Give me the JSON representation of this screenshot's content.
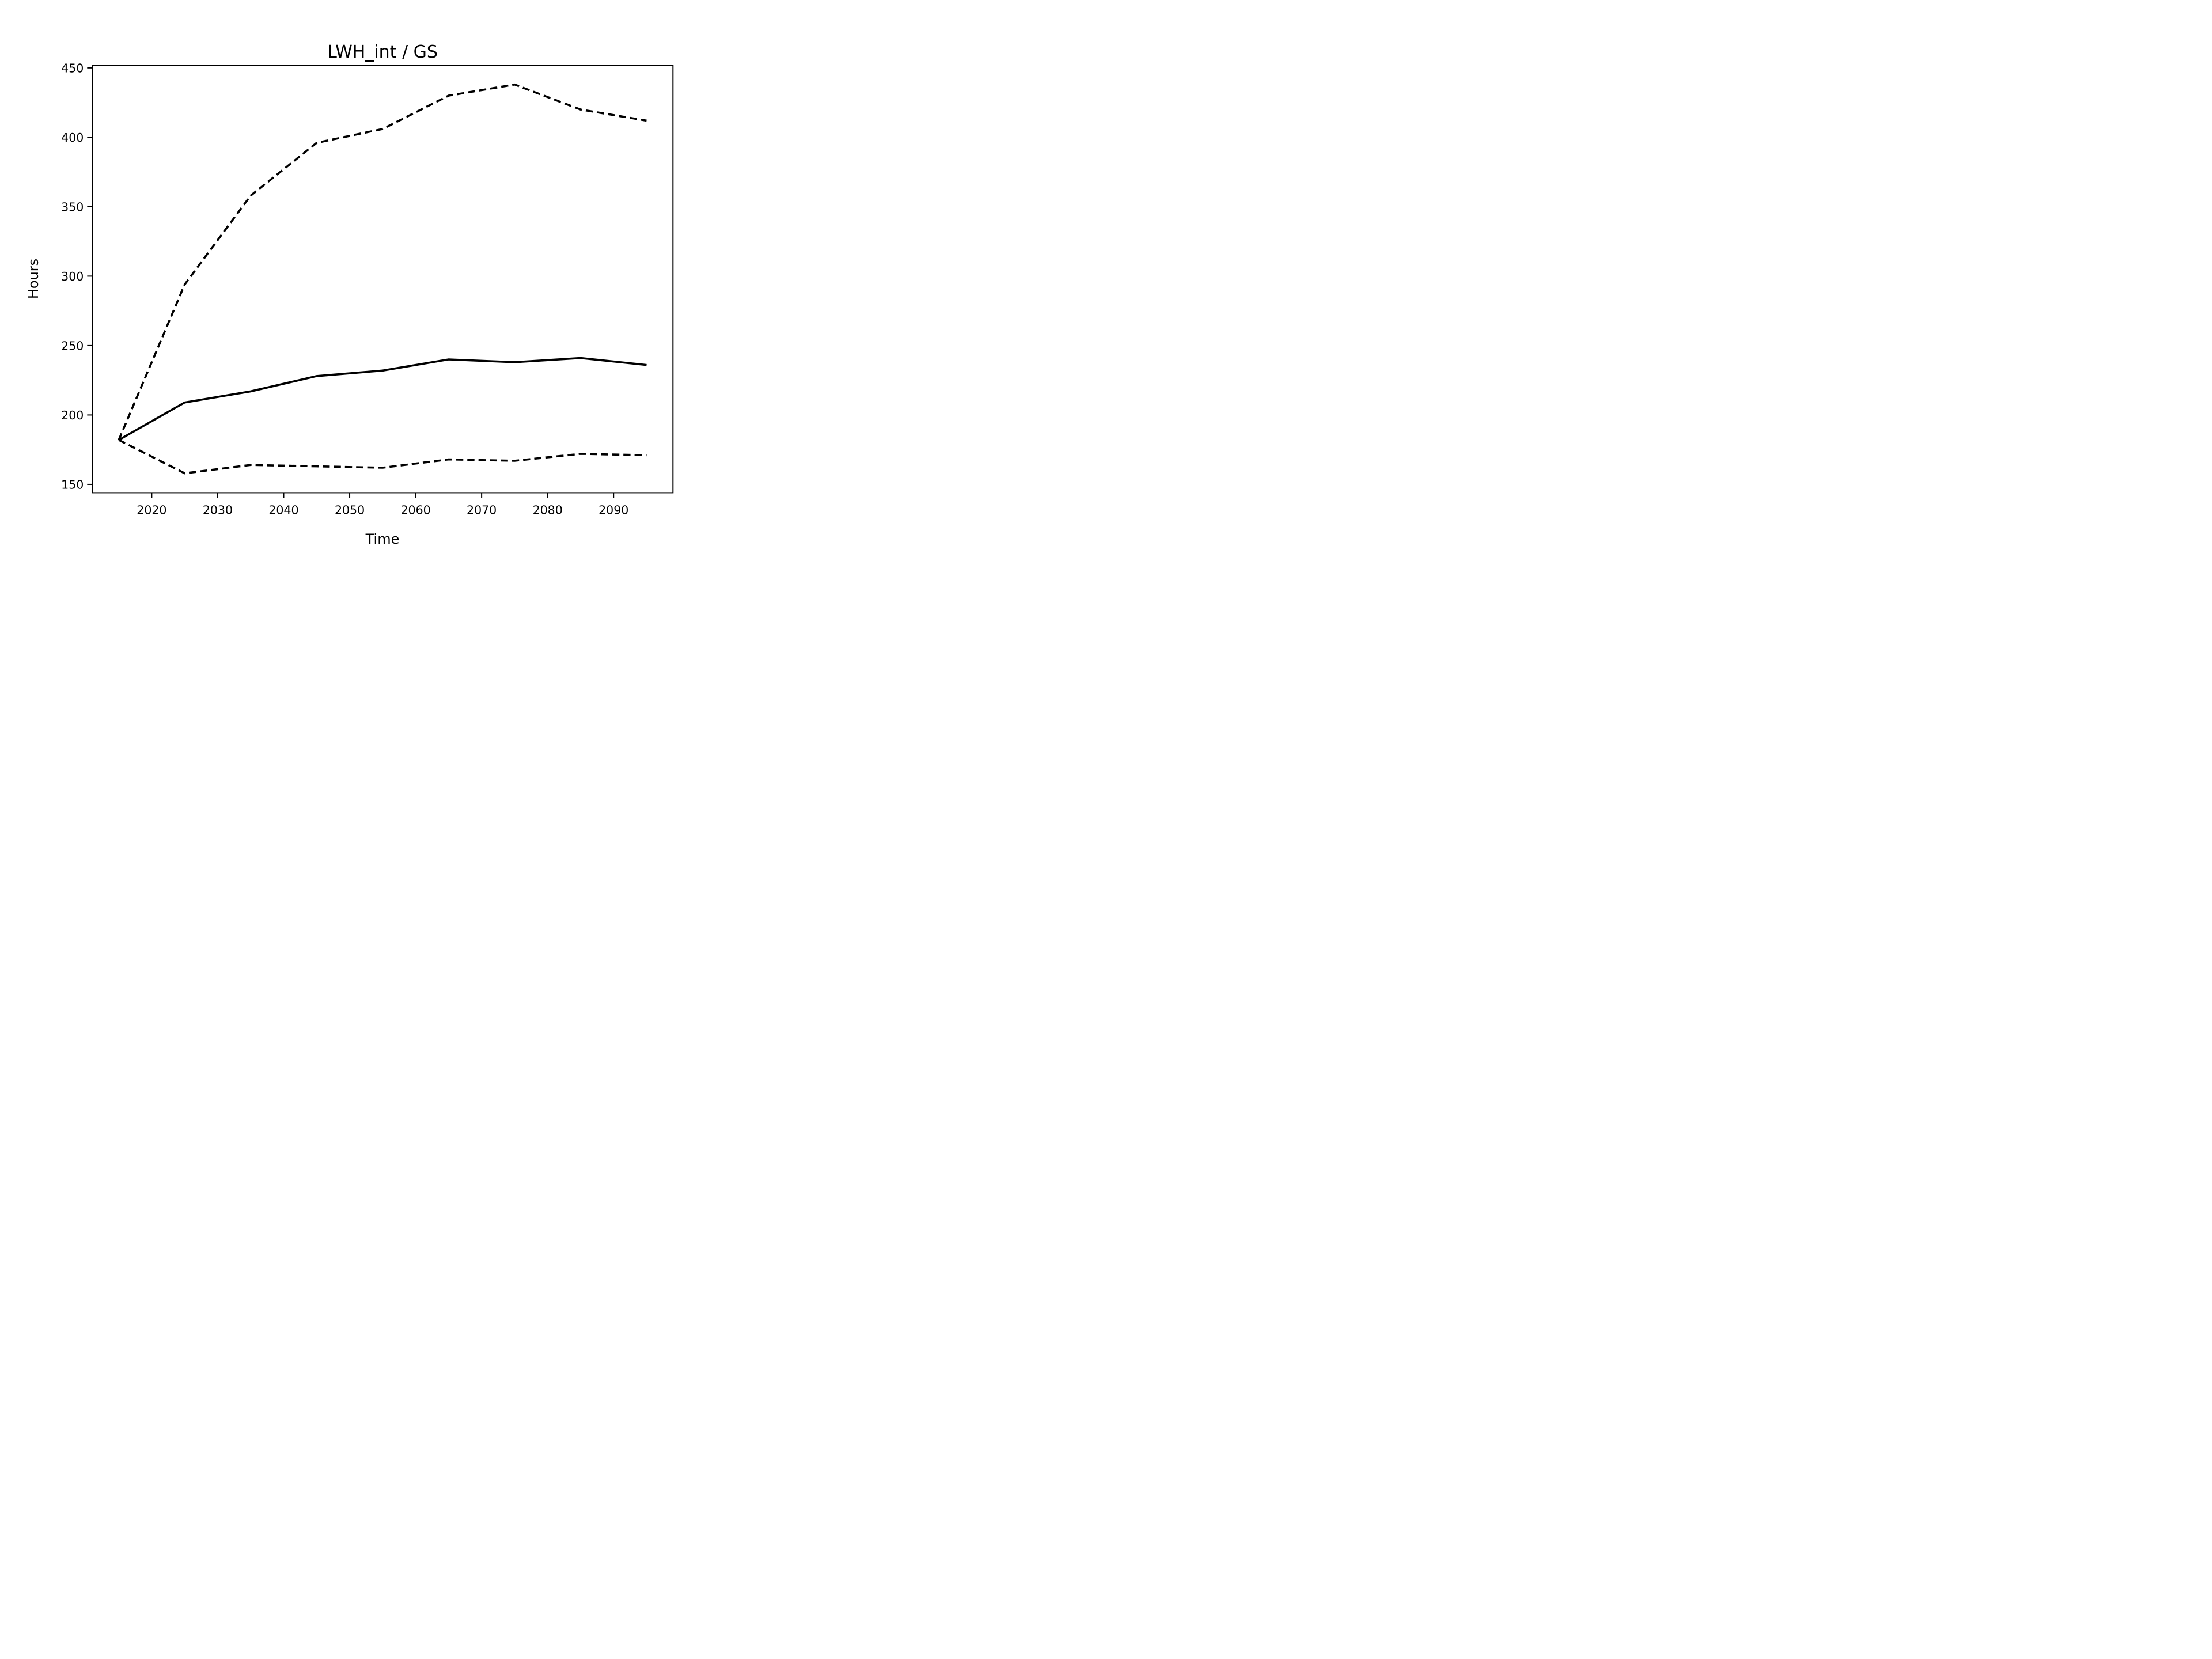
{
  "figure": {
    "background": "#ffffff",
    "foreground": "#000000"
  },
  "chart_data": {
    "type": "line",
    "title": "LWH_int / GS",
    "xlabel": "Time",
    "ylabel": "Hours",
    "x": [
      2015,
      2025,
      2035,
      2045,
      2055,
      2065,
      2075,
      2085,
      2095
    ],
    "series": [
      {
        "name": "upper-dashed",
        "style": "dashed",
        "color": "#000000",
        "values": [
          182,
          294,
          358,
          396,
          406,
          430,
          438,
          420,
          412
        ]
      },
      {
        "name": "middle-solid",
        "style": "solid",
        "color": "#000000",
        "values": [
          182,
          209,
          217,
          228,
          232,
          240,
          238,
          241,
          236
        ]
      },
      {
        "name": "lower-dashed",
        "style": "dashed",
        "color": "#000000",
        "values": [
          182,
          158,
          164,
          163,
          162,
          168,
          167,
          172,
          171
        ]
      }
    ],
    "xlim": [
      2011,
      2099
    ],
    "ylim": [
      144,
      452
    ],
    "xticks": [
      2020,
      2030,
      2040,
      2050,
      2060,
      2070,
      2080,
      2090
    ],
    "yticks": [
      150,
      200,
      250,
      300,
      350,
      400,
      450
    ],
    "grid": false,
    "legend": null
  }
}
